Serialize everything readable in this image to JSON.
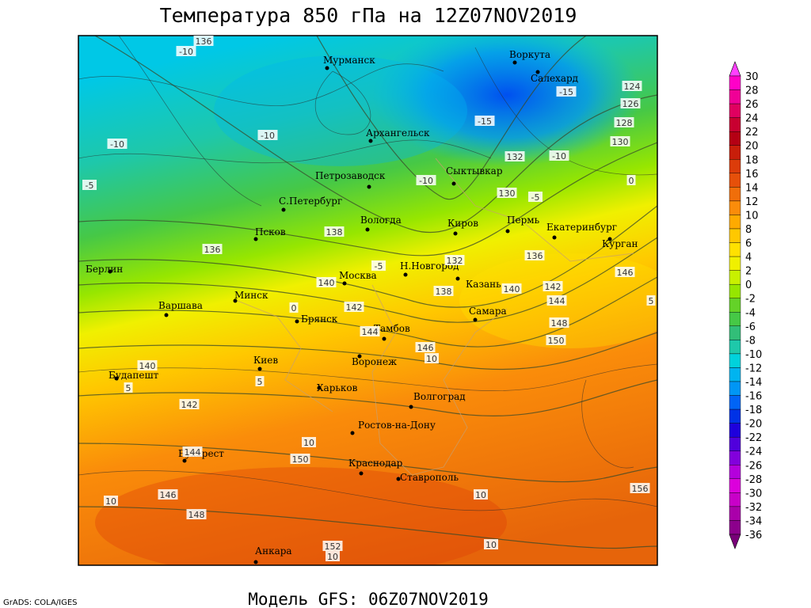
{
  "title": "Температура 850 гПа на 12Z07NOV2019",
  "credit": "GrADS: COLA/IGES",
  "model": "Модель GFS: 06Z07NOV2019",
  "cities": [
    "Мурманск",
    "Воркута",
    "Салехард",
    "Архангельск",
    "Петрозаводск",
    "Сыктывкар",
    "С.Петербург",
    "Вологда",
    "Киров",
    "Пермь",
    "Екатеринбург",
    "Курган",
    "Псков",
    "Н.Новгород",
    "Казань",
    "Берлин",
    "Москва",
    "Минск",
    "Варшава",
    "Брянск",
    "Самара",
    "Тамбов",
    "Киев",
    "Воронеж",
    "Будапешт",
    "Харьков",
    "Волгоград",
    "Ростов-на-Дону",
    "Бухарест",
    "Краснодар",
    "Ставрополь",
    "Анкара"
  ],
  "contour_labels": [
    136,
    -10,
    -10,
    -10,
    -5,
    -15,
    -15,
    124,
    126,
    128,
    130,
    -10,
    132,
    -10,
    0,
    130,
    -5,
    138,
    136,
    136,
    132,
    -5,
    146,
    140,
    138,
    140,
    142,
    144,
    0,
    142,
    148,
    5,
    144,
    150,
    146,
    10,
    140,
    5,
    5,
    142,
    10,
    144,
    150,
    146,
    10,
    10,
    156,
    148,
    152,
    10,
    10
  ],
  "colorbar": {
    "levels": [
      30,
      28,
      26,
      24,
      22,
      20,
      18,
      16,
      14,
      12,
      10,
      8,
      6,
      4,
      2,
      0,
      -2,
      -4,
      -6,
      -8,
      -10,
      -12,
      -14,
      -16,
      -18,
      -20,
      -22,
      -24,
      -26,
      -28,
      -30,
      -32,
      -34,
      -36
    ],
    "colors": [
      "#ff40ff",
      "#ff00c8",
      "#f00096",
      "#e00060",
      "#c80030",
      "#b40014",
      "#c81e0a",
      "#dc3c0a",
      "#e6500a",
      "#f06e0a",
      "#fa8c0a",
      "#ffaa00",
      "#ffc800",
      "#ffe100",
      "#f0f000",
      "#c8f000",
      "#96e600",
      "#64d228",
      "#46c846",
      "#32be78",
      "#1ec8aa",
      "#00d2dc",
      "#00b4f0",
      "#0096f5",
      "#0064f5",
      "#0032e6",
      "#1e00dc",
      "#5000dc",
      "#8200dc",
      "#b400dc",
      "#dc00dc",
      "#c800c8",
      "#aa00aa",
      "#8c008c",
      "#780078"
    ]
  }
}
